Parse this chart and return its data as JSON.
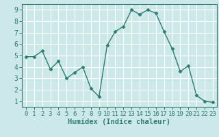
{
  "x": [
    0,
    1,
    2,
    3,
    4,
    5,
    6,
    7,
    8,
    9,
    10,
    11,
    12,
    13,
    14,
    15,
    16,
    17,
    18,
    19,
    20,
    21,
    22,
    23
  ],
  "y": [
    4.9,
    4.9,
    5.4,
    3.8,
    4.5,
    3.0,
    3.5,
    4.0,
    2.1,
    1.4,
    5.9,
    7.1,
    7.55,
    9.0,
    8.6,
    9.0,
    8.7,
    7.1,
    5.6,
    3.6,
    4.1,
    1.5,
    1.0,
    0.9
  ],
  "line_color": "#2e7d6e",
  "marker": "D",
  "marker_size": 2.5,
  "line_width": 1.0,
  "bg_color": "#cde8e8",
  "grid_color": "#ffffff",
  "xlabel": "Humidex (Indice chaleur)",
  "xlabel_fontsize": 7.5,
  "tick_fontsize": 6.5,
  "ylim": [
    0.5,
    9.5
  ],
  "xlim": [
    -0.5,
    23.5
  ],
  "yticks": [
    1,
    2,
    3,
    4,
    5,
    6,
    7,
    8,
    9
  ],
  "xticks": [
    0,
    1,
    2,
    3,
    4,
    5,
    6,
    7,
    8,
    9,
    10,
    11,
    12,
    13,
    14,
    15,
    16,
    17,
    18,
    19,
    20,
    21,
    22,
    23
  ]
}
